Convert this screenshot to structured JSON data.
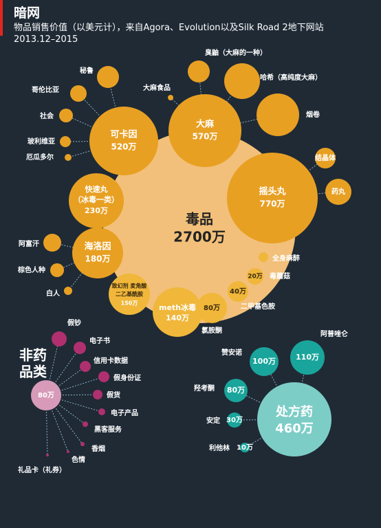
{
  "header": {
    "title": "暗网",
    "subtitle_line1": "物品销售价值（以美元计），来自Agora、Evolution以及Silk Road 2地下网站",
    "subtitle_line2": "2013.12–2015"
  },
  "colors": {
    "background": "#1f2a35",
    "drug_hub": "#f2c07a",
    "drug_node": "#e8a023",
    "drug_node_alt": "#f0b73a",
    "misc_hub": "#d79ab9",
    "misc_node": "#b0306f",
    "rx_hub": "#7dcdc7",
    "rx_node": "#19a59b",
    "link": "#8fb3c9"
  },
  "chart_data": {
    "type": "bubble-network",
    "groups": [
      {
        "name": "毒品",
        "value_label": "2700万",
        "hub_label": "毒品",
        "children": [
          {
            "name": "可卡因",
            "value_label": "520万",
            "children": [
              {
                "name": "秘鲁"
              },
              {
                "name": "哥伦比亚"
              },
              {
                "name": "社会"
              },
              {
                "name": "玻利维亚"
              },
              {
                "name": "厄瓜多尔"
              }
            ]
          },
          {
            "name": "大麻",
            "value_label": "570万",
            "children": [
              {
                "name": "大麻食品"
              },
              {
                "name": "臭鼬（大麻的一种）"
              },
              {
                "name": "哈希（高纯度大麻）"
              },
              {
                "name": "烟卷"
              }
            ]
          },
          {
            "name": "摇头丸",
            "value_label": "770万",
            "children": [
              {
                "name": "结晶体"
              },
              {
                "name": "药丸"
              }
            ]
          },
          {
            "name": "全身麻醉",
            "value_label": ""
          },
          {
            "name": "毒蘑菇",
            "value_label": "20万"
          },
          {
            "name": "二甲基色胺",
            "value_label": "40万"
          },
          {
            "name": "氯胺酮",
            "value_label": "80万"
          },
          {
            "name": "meth冰毒",
            "value_label": "140万"
          },
          {
            "name": "致幻剂 麦角酸二乙基酰胺",
            "value_label": "150万"
          },
          {
            "name": "海洛因",
            "value_label": "180万",
            "children": [
              {
                "name": "阿富汗"
              },
              {
                "name": "棕色人种"
              },
              {
                "name": "白人"
              }
            ]
          },
          {
            "name": "快速丸（冰毒一类）",
            "value_label": "230万"
          }
        ]
      },
      {
        "name": "非药品类",
        "value_label": "80万",
        "children": [
          {
            "name": "假钞"
          },
          {
            "name": "电子书"
          },
          {
            "name": "信用卡数据"
          },
          {
            "name": "假身份证"
          },
          {
            "name": "假货"
          },
          {
            "name": "电子产品"
          },
          {
            "name": "黑客服务"
          },
          {
            "name": "香烟"
          },
          {
            "name": "色情"
          },
          {
            "name": "礼品卡（礼券）"
          }
        ]
      },
      {
        "name": "处方药",
        "value_label": "460万",
        "children": [
          {
            "name": "阿普唑仑",
            "value_label": "110万"
          },
          {
            "name": "赞安诺",
            "value_label": "100万"
          },
          {
            "name": "羟考酮",
            "value_label": "80万"
          },
          {
            "name": "安定",
            "value_label": "30万"
          },
          {
            "name": "利他林",
            "value_label": "10万"
          }
        ]
      }
    ]
  }
}
